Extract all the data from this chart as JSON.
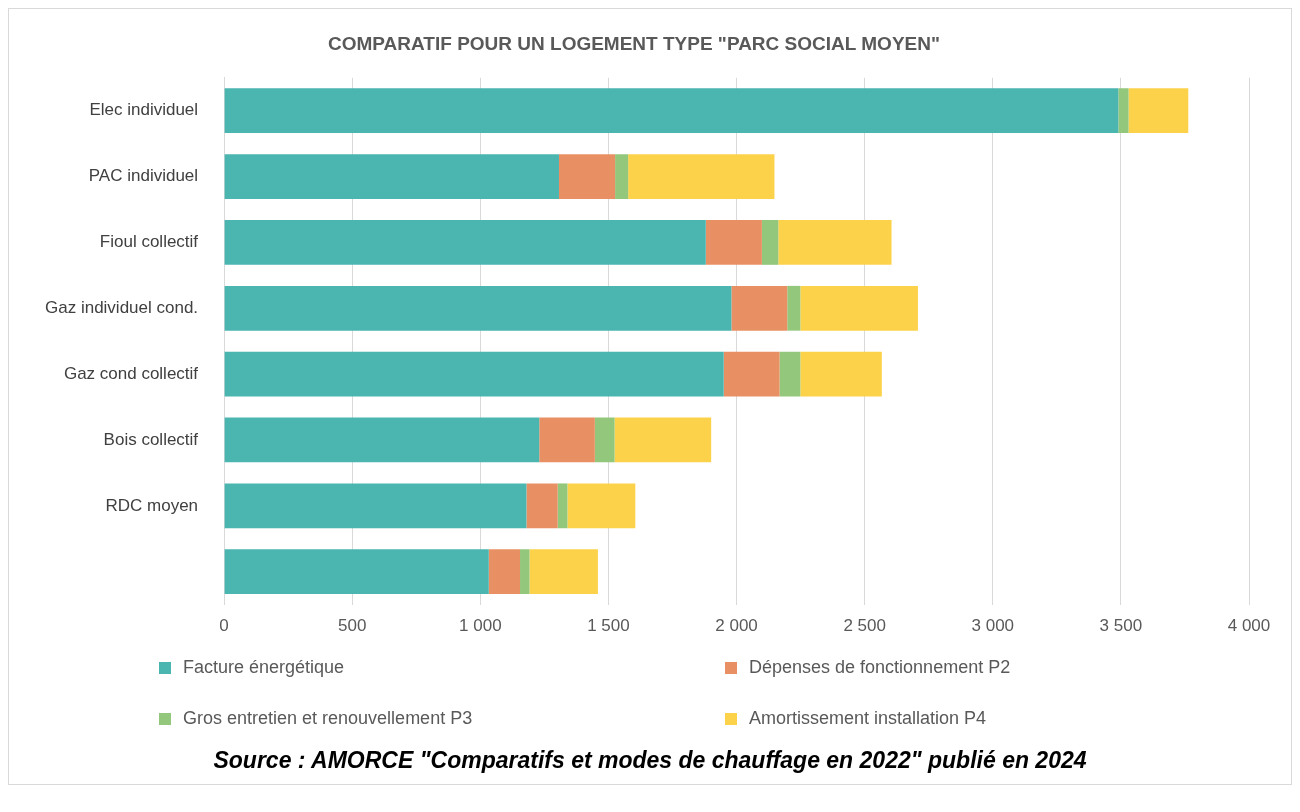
{
  "chart_data": {
    "type": "bar",
    "orientation": "horizontal",
    "stacked": true,
    "title": "COMPARATIF POUR UN LOGEMENT TYPE \"PARC SOCIAL MOYEN\"",
    "categories": [
      "Elec individuel",
      "PAC individuel",
      "Fioul collectif",
      "Gaz individuel cond.",
      "Gaz cond collectif",
      "Bois collectif",
      "RDC moyen",
      null
    ],
    "series": [
      {
        "name": "Facture énergétique",
        "color": "#4bb5b0",
        "values": [
          3490,
          1307,
          1880,
          1980,
          1950,
          1230,
          1180,
          1033
        ]
      },
      {
        "name": "Dépenses de fonctionnement P2",
        "color": "#e89064",
        "values": [
          0,
          219,
          219,
          218,
          218,
          217,
          122,
          122
        ]
      },
      {
        "name": "Gros entretien et renouvellement P3",
        "color": "#93c77c",
        "values": [
          40,
          51,
          64,
          51,
          81,
          77,
          38,
          37
        ]
      },
      {
        "name": "Amortissement installation P4",
        "color": "#fdd24b",
        "values": [
          233,
          571,
          442,
          459,
          318,
          377,
          265,
          267
        ]
      }
    ],
    "xlim": [
      0,
      4000
    ],
    "xticks": [
      0,
      500,
      {
        "value": 1000,
        "label": "1 000"
      },
      {
        "value": 1500,
        "label": "1 500"
      },
      {
        "value": 2000,
        "label": "2 000"
      },
      {
        "value": 2500,
        "label": "2 500"
      },
      {
        "value": 3000,
        "label": "3 000"
      },
      {
        "value": 3500,
        "label": "3 500"
      },
      {
        "value": 4000,
        "label": "4 000"
      }
    ],
    "grid": "x",
    "legend": "bottom",
    "annotations": [
      "Source : AMORCE \"Comparatifs et modes de chauffage en 2022\" publié en 2024"
    ]
  }
}
